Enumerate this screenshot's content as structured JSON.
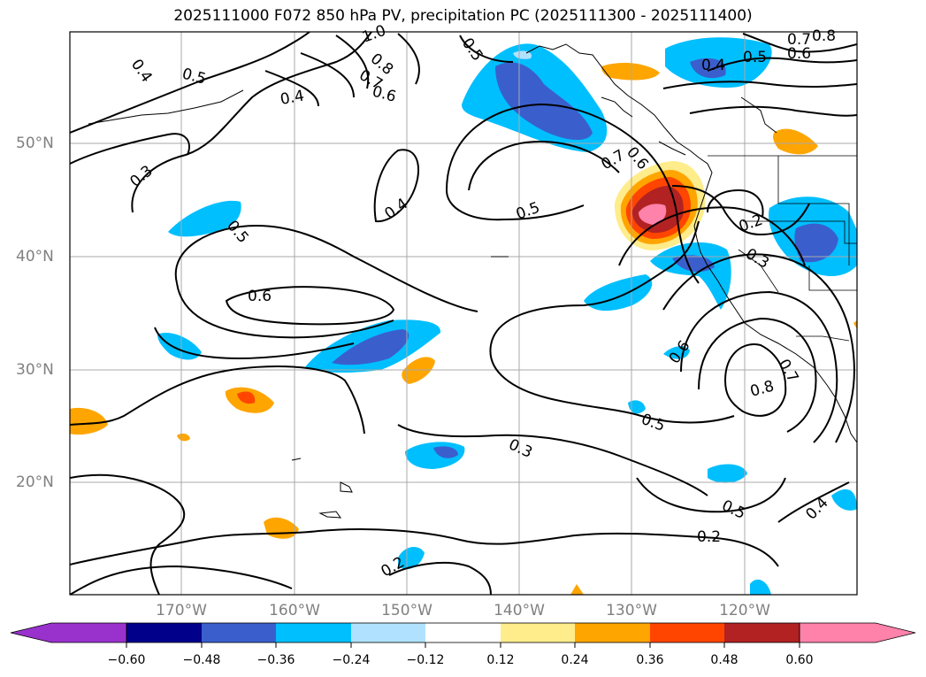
{
  "title": "2025111000 F072 850 hPa PV, precipitation PC (2025111300 - 2025111400)",
  "map": {
    "latitude_labels": [
      "50°N",
      "40°N",
      "30°N",
      "20°N"
    ],
    "longitude_labels": [
      "170°W",
      "160°W",
      "150°W",
      "140°W",
      "130°W",
      "120°W"
    ],
    "contour_labels": [
      "0.4",
      "0.5",
      "0.4",
      "0.6",
      "0.7",
      "0.8",
      "1.0",
      "0.5",
      "0.6",
      "0.7",
      "0.4",
      "0.5",
      "0.6",
      "0.7",
      "0.8",
      "0.3",
      "0.5",
      "0.4",
      "0.5",
      "0.6",
      "0.2",
      "0.3",
      "0.6",
      "0.8",
      "0.7",
      "0.5",
      "0.3",
      "0.5",
      "0.2",
      "0.2",
      "0.4"
    ]
  },
  "colorbar": {
    "ticks": [
      "−0.60",
      "−0.48",
      "−0.36",
      "−0.24",
      "−0.12",
      "0.12",
      "0.24",
      "0.36",
      "0.48",
      "0.60"
    ],
    "colors": [
      "#9932cc",
      "#00008b",
      "#3a5fcd",
      "#00bfff",
      "#b0e2ff",
      "#ffffff",
      "#ffec8b",
      "#ffa500",
      "#ff4500",
      "#b22222",
      "#ff82ab"
    ]
  }
}
